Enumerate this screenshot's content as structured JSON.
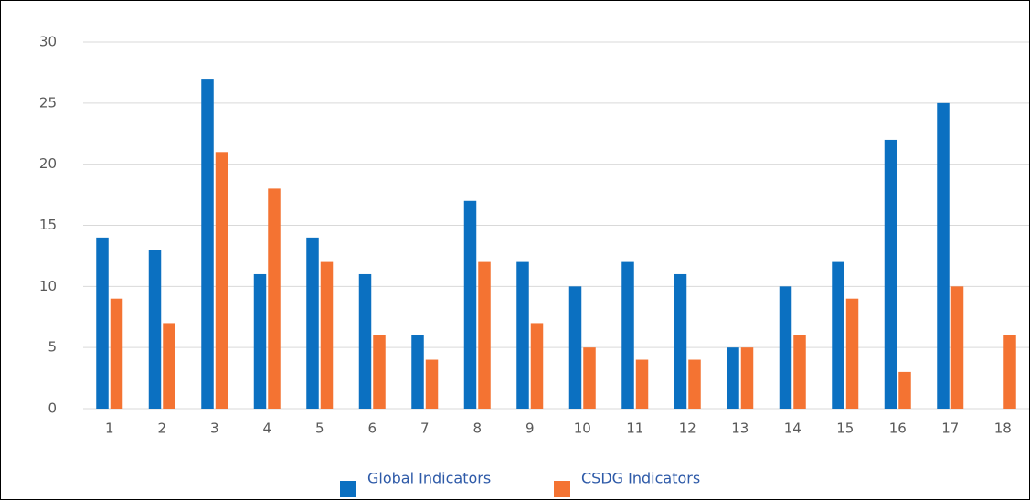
{
  "chart_data": {
    "type": "bar",
    "categories": [
      "1",
      "2",
      "3",
      "4",
      "5",
      "6",
      "7",
      "8",
      "9",
      "10",
      "11",
      "12",
      "13",
      "14",
      "15",
      "16",
      "17",
      "18"
    ],
    "series": [
      {
        "name": "Global Indicators",
        "color": "#0b70c1",
        "values": [
          14,
          13,
          27,
          11,
          14,
          11,
          6,
          17,
          12,
          10,
          12,
          11,
          5,
          10,
          12,
          22,
          25,
          0
        ]
      },
      {
        "name": "CSDG Indicators",
        "color": "#f47332",
        "values": [
          9,
          7,
          21,
          18,
          12,
          6,
          4,
          12,
          7,
          5,
          4,
          4,
          5,
          6,
          9,
          3,
          10,
          6
        ]
      }
    ],
    "ylim": [
      0,
      30
    ],
    "yticks": [
      0,
      5,
      10,
      15,
      20,
      25,
      30
    ],
    "grid": true,
    "legend": "bottom"
  }
}
